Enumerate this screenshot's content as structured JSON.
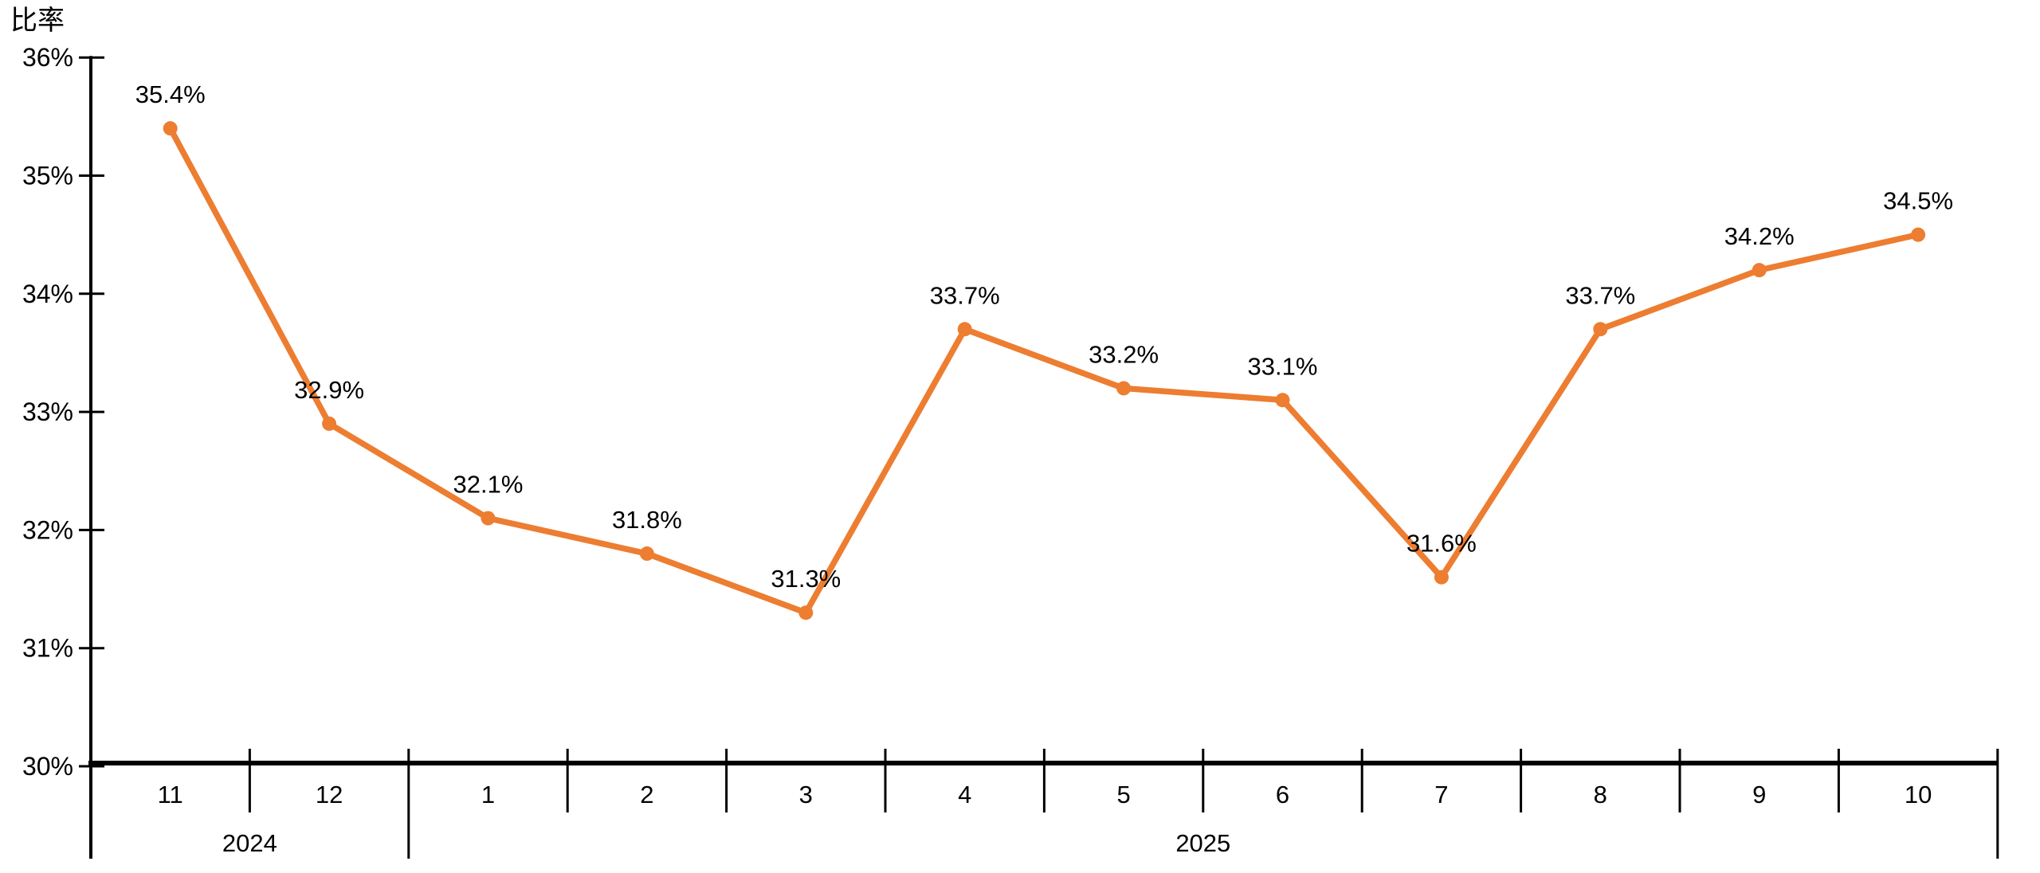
{
  "chart_data": {
    "type": "line",
    "y_axis": {
      "title": "比率",
      "min": 30,
      "max": 36,
      "tick_step": 1,
      "tick_labels": [
        "36%",
        "35%",
        "34%",
        "33%",
        "32%",
        "31%",
        "30%"
      ],
      "unit": "%"
    },
    "x_axis": {
      "months": [
        "11",
        "12",
        "1",
        "2",
        "3",
        "4",
        "5",
        "6",
        "7",
        "8",
        "9",
        "10"
      ],
      "year_groups": [
        {
          "label": "2024",
          "months_count": 2
        },
        {
          "label": "2025",
          "months_count": 10
        }
      ]
    },
    "categories": [
      "2024-11",
      "2024-12",
      "2025-1",
      "2025-2",
      "2025-3",
      "2025-4",
      "2025-5",
      "2025-6",
      "2025-7",
      "2025-8",
      "2025-9",
      "2025-10"
    ],
    "series": [
      {
        "name": "比率",
        "color": "#ED7D31",
        "values": [
          35.4,
          32.9,
          32.1,
          31.8,
          31.3,
          33.7,
          33.2,
          33.1,
          31.6,
          33.7,
          34.2,
          34.5
        ],
        "data_labels": [
          "35.4%",
          "32.9%",
          "32.1%",
          "31.8%",
          "31.3%",
          "33.7%",
          "33.2%",
          "33.1%",
          "31.6%",
          "33.7%",
          "34.2%",
          "34.5%"
        ]
      }
    ],
    "legend": "none",
    "grid": false
  },
  "colors": {
    "line": "#ED7D31",
    "marker": "#ED7D31",
    "axis": "#000000",
    "text": "#000000",
    "background": "#FFFFFF"
  }
}
